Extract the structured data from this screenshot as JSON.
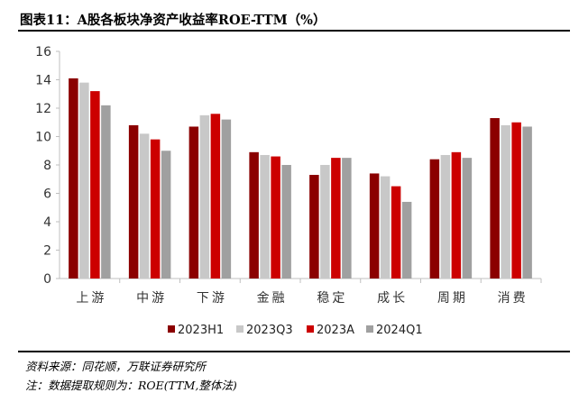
{
  "figure": {
    "title": "图表11：A股各板块净资产收益率ROE-TTM（%）",
    "source": "资料来源：同花顺，万联证券研究所",
    "note": "注：数据提取规则为：ROE(TTM,整体法)"
  },
  "colors": {
    "2023H1": "#8b0000",
    "2023Q3": "#c8c8c8",
    "2023A": "#cc0000",
    "2024Q1": "#a0a0a0",
    "axis": "#bfbfbf",
    "text": "#333333"
  },
  "chart_data": {
    "type": "bar",
    "title": "图表11：A股各板块净资产收益率ROE-TTM（%）",
    "xlabel": "",
    "ylabel": "",
    "ylim": [
      0,
      16
    ],
    "yticks": [
      0,
      2,
      4,
      6,
      8,
      10,
      12,
      14,
      16
    ],
    "grid": false,
    "legend_position": "bottom",
    "categories": [
      "上游",
      "中游",
      "下游",
      "金融",
      "稳定",
      "成长",
      "周期",
      "消费"
    ],
    "series": [
      {
        "name": "2023H1",
        "values": [
          14.1,
          10.8,
          10.7,
          8.9,
          7.3,
          7.4,
          8.4,
          11.3
        ]
      },
      {
        "name": "2023Q3",
        "values": [
          13.8,
          10.2,
          11.5,
          8.7,
          8.0,
          7.2,
          8.7,
          10.8
        ]
      },
      {
        "name": "2023A",
        "values": [
          13.2,
          9.8,
          11.6,
          8.6,
          8.5,
          6.5,
          8.9,
          11.0
        ]
      },
      {
        "name": "2024Q1",
        "values": [
          12.2,
          9.0,
          11.2,
          8.0,
          8.5,
          5.4,
          8.5,
          10.7
        ]
      }
    ]
  }
}
